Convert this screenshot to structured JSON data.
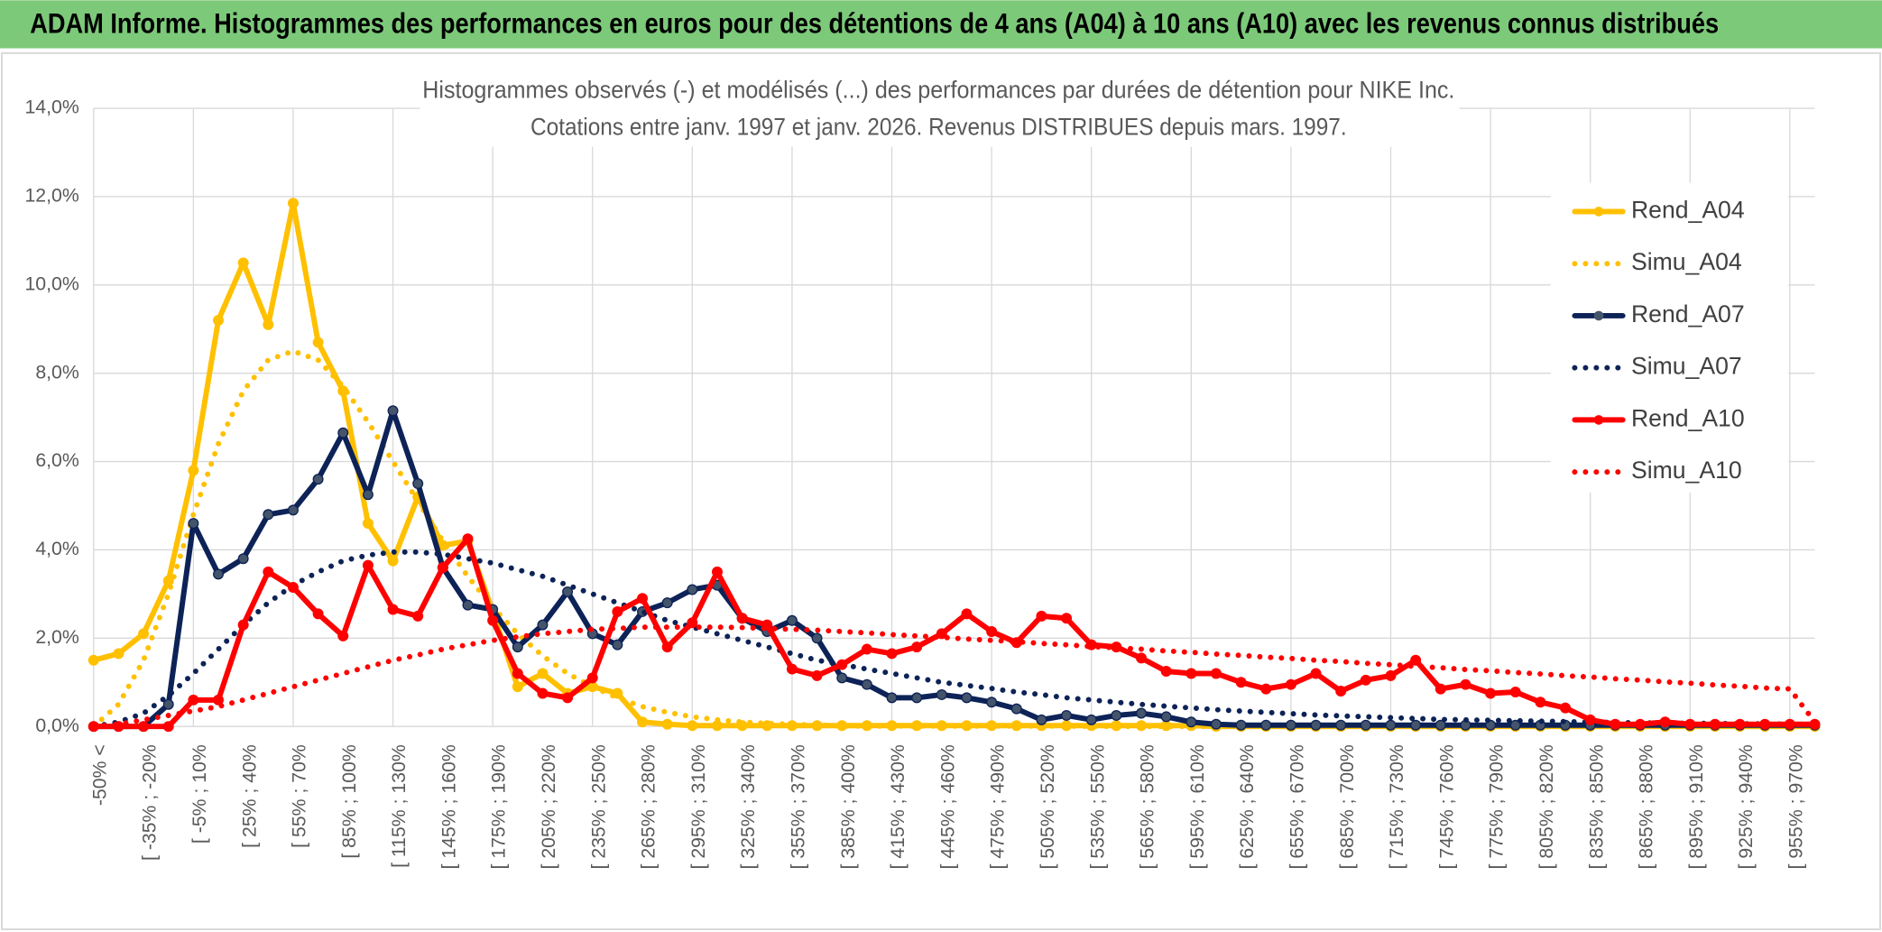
{
  "chart_data": {
    "type": "line",
    "header": "ADAM Informe. Histogrammes des performances en euros pour des détentions de 4 ans (A04) à 10 ans (A10) avec les revenus connus distribués",
    "title": "Histogrammes observés (-) et modélisés (...) des performances par durées de détention pour NIKE Inc.",
    "subtitle": "Cotations entre janv. 1997 et janv. 2026. Revenus DISTRIBUES depuis mars. 1997.",
    "categories": [
      "-50% <",
      null,
      "[ -35% ; -20%",
      null,
      "[ -5% ; 10%",
      null,
      "[ 25% ; 40%",
      null,
      "[ 55% ; 70%",
      null,
      "[ 85% ; 100%",
      null,
      "[ 115% ; 130%",
      null,
      "[ 145% ; 160%",
      null,
      "[ 175% ; 190%",
      null,
      "[ 205% ; 220%",
      null,
      "[ 235% ; 250%",
      null,
      "[ 265% ; 280%",
      null,
      "[ 295% ; 310%",
      null,
      "[ 325% ; 340%",
      null,
      "[ 355% ; 370%",
      null,
      "[ 385% ; 400%",
      null,
      "[ 415% ; 430%",
      null,
      "[ 445% ; 460%",
      null,
      "[ 475% ; 490%",
      null,
      "[ 505% ; 520%",
      null,
      "[ 535% ; 550%",
      null,
      "[ 565% ; 580%",
      null,
      "[ 595% ; 610%",
      null,
      "[ 625% ; 640%",
      null,
      "[ 655% ; 670%",
      null,
      "[ 685% ; 700%",
      null,
      "[ 715% ; 730%",
      null,
      "[ 745% ; 760%",
      null,
      "[ 775% ; 790%",
      null,
      "[ 805% ; 820%",
      null,
      "[ 835% ; 850%",
      null,
      "[ 865% ; 880%",
      null,
      "[ 895% ; 910%",
      null,
      "[ 925% ; 940%",
      null,
      "[ 955% ; 970%",
      null
    ],
    "ylim": [
      0,
      14
    ],
    "yticks": [
      {
        "value": 0,
        "label": "0,0%"
      },
      {
        "value": 2,
        "label": "2,0%"
      },
      {
        "value": 4,
        "label": "4,0%"
      },
      {
        "value": 6,
        "label": "6,0%"
      },
      {
        "value": 8,
        "label": "8,0%"
      },
      {
        "value": 10,
        "label": "10,0%"
      },
      {
        "value": 12,
        "label": "12,0%"
      },
      {
        "value": 14,
        "label": "14,0%"
      }
    ],
    "grid": true,
    "legend": "right",
    "series": [
      {
        "name": "Rend_A04",
        "color": "#ffc000",
        "style": "solid",
        "marker": true,
        "values": [
          1.5,
          1.65,
          2.1,
          3.3,
          5.8,
          9.2,
          10.5,
          9.1,
          11.85,
          8.7,
          7.6,
          4.6,
          3.75,
          5.2,
          4.1,
          4.2,
          2.6,
          0.9,
          1.2,
          0.75,
          0.9,
          0.75,
          0.1,
          0.05,
          0.02,
          0.02,
          0.02,
          0.02,
          0.02,
          0.02,
          0.02,
          0.02,
          0.02,
          0.02,
          0.02,
          0.02,
          0.02,
          0.02,
          0.02,
          0.02,
          0.02,
          0.02,
          0.02,
          0.02,
          0.02,
          0,
          0,
          0,
          0,
          0,
          0,
          0,
          0,
          0,
          0,
          0,
          0,
          0,
          0,
          0,
          0,
          0,
          0,
          0,
          0,
          0,
          0,
          0,
          0,
          0
        ]
      },
      {
        "name": "Simu_A04",
        "color": "#ffc000",
        "style": "dotted",
        "marker": false,
        "values": [
          0,
          0.5,
          1.5,
          3,
          4.8,
          6.4,
          7.6,
          8.3,
          8.5,
          8.3,
          7.7,
          6.9,
          6,
          5.1,
          4.2,
          3.4,
          2.7,
          2.1,
          1.6,
          1.2,
          0.9,
          0.65,
          0.45,
          0.32,
          0.22,
          0.15,
          0.1,
          0.07,
          0.05,
          0.03,
          0.01,
          0.01,
          0.01,
          0.01,
          0.01,
          0.01,
          0.01,
          0.01,
          0.01,
          0.01,
          0,
          0,
          0,
          0,
          0,
          0,
          0,
          0,
          0,
          0,
          0,
          0,
          0,
          0,
          0,
          0,
          0,
          0,
          0,
          0,
          0,
          0,
          0,
          0,
          0,
          0,
          0,
          0,
          0,
          0
        ]
      },
      {
        "name": "Rend_A07",
        "color": "#0d2357",
        "style": "solid",
        "marker": true,
        "values": [
          0,
          0,
          0,
          0.5,
          4.6,
          3.45,
          3.8,
          4.8,
          4.9,
          5.6,
          6.65,
          5.25,
          7.15,
          5.5,
          3.6,
          2.75,
          2.65,
          1.8,
          2.3,
          3.05,
          2.1,
          1.85,
          2.6,
          2.8,
          3.1,
          3.2,
          2.45,
          2.15,
          2.4,
          2,
          1.1,
          0.95,
          0.65,
          0.65,
          0.72,
          0.65,
          0.55,
          0.4,
          0.15,
          0.25,
          0.15,
          0.25,
          0.3,
          0.22,
          0.1,
          0.05,
          0.03,
          0.03,
          0.03,
          0.03,
          0.03,
          0.03,
          0.03,
          0.03,
          0.03,
          0.03,
          0.03,
          0.03,
          0.03,
          0.03,
          0.03,
          0.03,
          0.03,
          0.03,
          0.03,
          0.03,
          0.03,
          0.03,
          0.03,
          0.03
        ]
      },
      {
        "name": "Simu_A07",
        "color": "#0d2357",
        "style": "dotted",
        "marker": false,
        "values": [
          0,
          0.1,
          0.3,
          0.7,
          1.2,
          1.75,
          2.3,
          2.8,
          3.2,
          3.5,
          3.75,
          3.88,
          3.95,
          3.95,
          3.9,
          3.8,
          3.7,
          3.55,
          3.4,
          3.2,
          3,
          2.8,
          2.6,
          2.4,
          2.25,
          2.1,
          1.95,
          1.8,
          1.65,
          1.5,
          1.4,
          1.3,
          1.2,
          1.1,
          1,
          0.93,
          0.86,
          0.78,
          0.72,
          0.65,
          0.6,
          0.55,
          0.5,
          0.46,
          0.42,
          0.38,
          0.35,
          0.32,
          0.29,
          0.26,
          0.24,
          0.22,
          0.2,
          0.18,
          0.16,
          0.15,
          0.14,
          0.13,
          0.12,
          0.11,
          0.1,
          0.09,
          0.08,
          0.08,
          0.07,
          0.07,
          0.06,
          0.06,
          0.05,
          0.05
        ]
      },
      {
        "name": "Rend_A10",
        "color": "#ff0000",
        "style": "solid",
        "marker": true,
        "values": [
          0,
          0,
          0,
          0,
          0.6,
          0.6,
          2.3,
          3.5,
          3.15,
          2.55,
          2.05,
          3.65,
          2.65,
          2.5,
          3.6,
          4.25,
          2.4,
          1.2,
          0.75,
          0.65,
          1.1,
          2.6,
          2.9,
          1.8,
          2.35,
          3.5,
          2.45,
          2.3,
          1.3,
          1.15,
          1.4,
          1.75,
          1.65,
          1.8,
          2.1,
          2.55,
          2.15,
          1.9,
          2.5,
          2.45,
          1.85,
          1.8,
          1.55,
          1.25,
          1.2,
          1.2,
          1,
          0.85,
          0.95,
          1.2,
          0.8,
          1.05,
          1.15,
          1.5,
          0.85,
          0.95,
          0.75,
          0.78,
          0.55,
          0.42,
          0.15,
          0.05,
          0.05,
          0.1,
          0.05,
          0.05,
          0.05,
          0.05,
          0.05,
          0.05
        ]
      },
      {
        "name": "Simu_A10",
        "color": "#ff0000",
        "style": "dotted",
        "marker": false,
        "values": [
          0,
          0.05,
          0.15,
          0.25,
          0.35,
          0.45,
          0.6,
          0.75,
          0.9,
          1.05,
          1.2,
          1.35,
          1.5,
          1.62,
          1.75,
          1.85,
          1.95,
          2.03,
          2.1,
          2.15,
          2.2,
          2.22,
          2.25,
          2.25,
          2.25,
          2.25,
          2.24,
          2.22,
          2.2,
          2.18,
          2.15,
          2.12,
          2.08,
          2.05,
          2.02,
          1.98,
          1.95,
          1.92,
          1.88,
          1.85,
          1.81,
          1.78,
          1.75,
          1.71,
          1.68,
          1.64,
          1.61,
          1.57,
          1.54,
          1.5,
          1.47,
          1.43,
          1.4,
          1.36,
          1.33,
          1.29,
          1.26,
          1.22,
          1.19,
          1.15,
          1.12,
          1.08,
          1.05,
          1.01,
          0.98,
          0.94,
          0.91,
          0.87,
          0.85,
          0.1
        ]
      }
    ]
  }
}
